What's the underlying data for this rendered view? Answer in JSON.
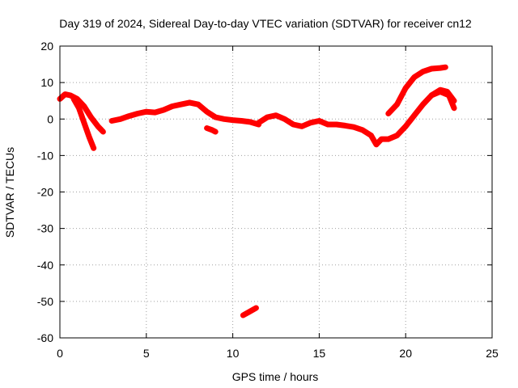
{
  "chart_data": {
    "type": "scatter",
    "title": "Day 319 of 2024, Sidereal Day-to-day VTEC variation (SDTVAR) for receiver cn12",
    "xlabel": "GPS time / hours",
    "ylabel": "SDTVAR / TECUs",
    "xlim": [
      0,
      25
    ],
    "ylim": [
      -60,
      20
    ],
    "xticks": [
      0,
      5,
      10,
      15,
      20,
      25
    ],
    "yticks": [
      -60,
      -50,
      -40,
      -30,
      -20,
      -10,
      0,
      10,
      20
    ],
    "grid": true,
    "series_color": "#ff0000",
    "series": [
      {
        "name": "track-1",
        "points": [
          [
            0.0,
            5.5
          ],
          [
            0.3,
            6.8
          ],
          [
            0.6,
            6.5
          ],
          [
            1.0,
            5.5
          ],
          [
            1.4,
            3.5
          ],
          [
            1.8,
            0.5
          ],
          [
            2.2,
            -2.0
          ],
          [
            2.5,
            -3.5
          ]
        ]
      },
      {
        "name": "track-2",
        "points": [
          [
            0.8,
            5.5
          ],
          [
            1.1,
            3.0
          ],
          [
            1.4,
            -1.0
          ],
          [
            1.7,
            -5.0
          ],
          [
            1.95,
            -8.0
          ]
        ]
      },
      {
        "name": "track-3",
        "points": [
          [
            3.0,
            -0.5
          ],
          [
            3.5,
            0.0
          ],
          [
            4.0,
            0.8
          ],
          [
            4.5,
            1.5
          ],
          [
            5.0,
            2.0
          ],
          [
            5.5,
            1.8
          ],
          [
            6.0,
            2.5
          ],
          [
            6.5,
            3.5
          ],
          [
            7.0,
            4.0
          ],
          [
            7.5,
            4.5
          ],
          [
            8.0,
            4.0
          ],
          [
            8.5,
            2.0
          ],
          [
            9.0,
            0.5
          ],
          [
            9.5,
            0.0
          ],
          [
            10.0,
            -0.3
          ],
          [
            10.5,
            -0.5
          ],
          [
            11.0,
            -0.8
          ],
          [
            11.5,
            -1.5
          ]
        ]
      },
      {
        "name": "track-4",
        "points": [
          [
            8.5,
            -2.5
          ],
          [
            8.8,
            -3.0
          ],
          [
            9.0,
            -3.5
          ]
        ]
      },
      {
        "name": "track-5",
        "points": [
          [
            11.5,
            -1.0
          ],
          [
            12.0,
            0.5
          ],
          [
            12.5,
            1.0
          ],
          [
            13.0,
            0.0
          ],
          [
            13.5,
            -1.5
          ],
          [
            14.0,
            -2.0
          ],
          [
            14.5,
            -1.0
          ],
          [
            15.0,
            -0.5
          ],
          [
            15.5,
            -1.5
          ],
          [
            16.0,
            -1.5
          ],
          [
            16.5,
            -1.8
          ],
          [
            17.0,
            -2.2
          ],
          [
            17.5,
            -3.0
          ],
          [
            18.0,
            -4.5
          ],
          [
            18.3,
            -7.0
          ],
          [
            18.6,
            -5.5
          ],
          [
            19.0,
            -5.5
          ],
          [
            19.5,
            -4.5
          ],
          [
            20.0,
            -2.0
          ],
          [
            20.5,
            1.0
          ],
          [
            21.0,
            4.0
          ],
          [
            21.5,
            6.5
          ],
          [
            22.0,
            8.0
          ],
          [
            22.4,
            7.5
          ],
          [
            22.8,
            5.0
          ]
        ]
      },
      {
        "name": "track-6",
        "points": [
          [
            19.0,
            1.5
          ],
          [
            19.5,
            4.0
          ],
          [
            20.0,
            8.5
          ],
          [
            20.5,
            11.5
          ],
          [
            21.0,
            13.0
          ],
          [
            21.5,
            13.8
          ],
          [
            22.0,
            14.0
          ],
          [
            22.3,
            14.2
          ]
        ]
      },
      {
        "name": "track-7",
        "points": [
          [
            21.5,
            6.5
          ],
          [
            22.0,
            7.5
          ],
          [
            22.5,
            6.5
          ],
          [
            22.8,
            3.0
          ]
        ]
      },
      {
        "name": "track-8",
        "points": [
          [
            10.6,
            -53.8
          ],
          [
            10.9,
            -53.0
          ],
          [
            11.2,
            -52.2
          ],
          [
            11.35,
            -51.8
          ]
        ]
      }
    ]
  }
}
